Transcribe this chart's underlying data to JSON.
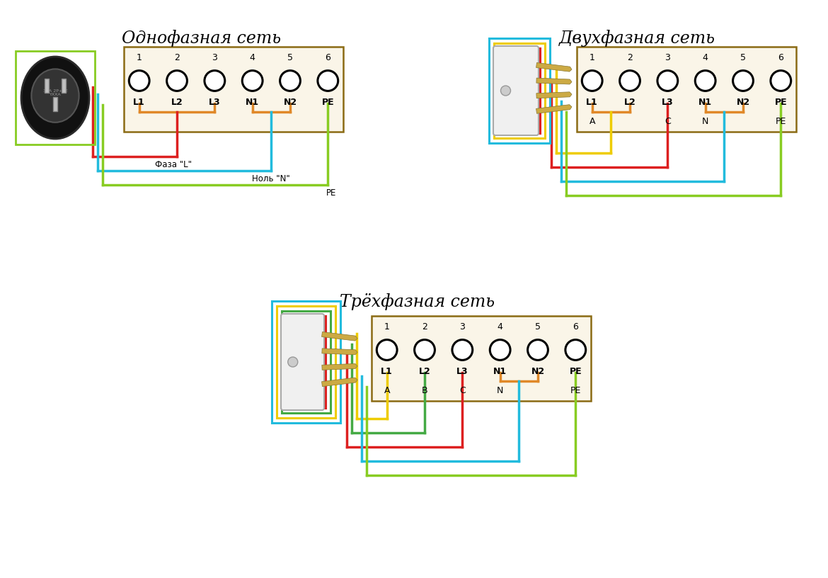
{
  "title1": "Однофазная сеть",
  "title2": "Двухфазная сеть",
  "title3": "Трёхфазная сеть",
  "bg_color": "#ffffff",
  "box_edge_color": "#8B6B14",
  "box_fill_color": "#faf5e8",
  "wire_red": "#dd2020",
  "wire_blue": "#22bbdd",
  "wire_green": "#88cc22",
  "wire_orange": "#e08828",
  "wire_yellow": "#eecc00",
  "wire_dgreen": "#44aa44",
  "font_title": 17,
  "font_label": 9,
  "font_number": 9,
  "lw": 2.5,
  "numbers": [
    "1",
    "2",
    "3",
    "4",
    "5",
    "6"
  ],
  "labels_all": [
    "L1",
    "L2",
    "L3",
    "N1",
    "N2",
    "PE"
  ],
  "bottom2": [
    "A",
    "",
    "C",
    "N",
    "",
    "PE"
  ],
  "bottom3": [
    "A",
    "B",
    "C",
    "N",
    "",
    "PE"
  ],
  "label_faza": "Фаза \"L\"",
  "label_nol": "Ноль \"N\"",
  "label_pe": "PE"
}
